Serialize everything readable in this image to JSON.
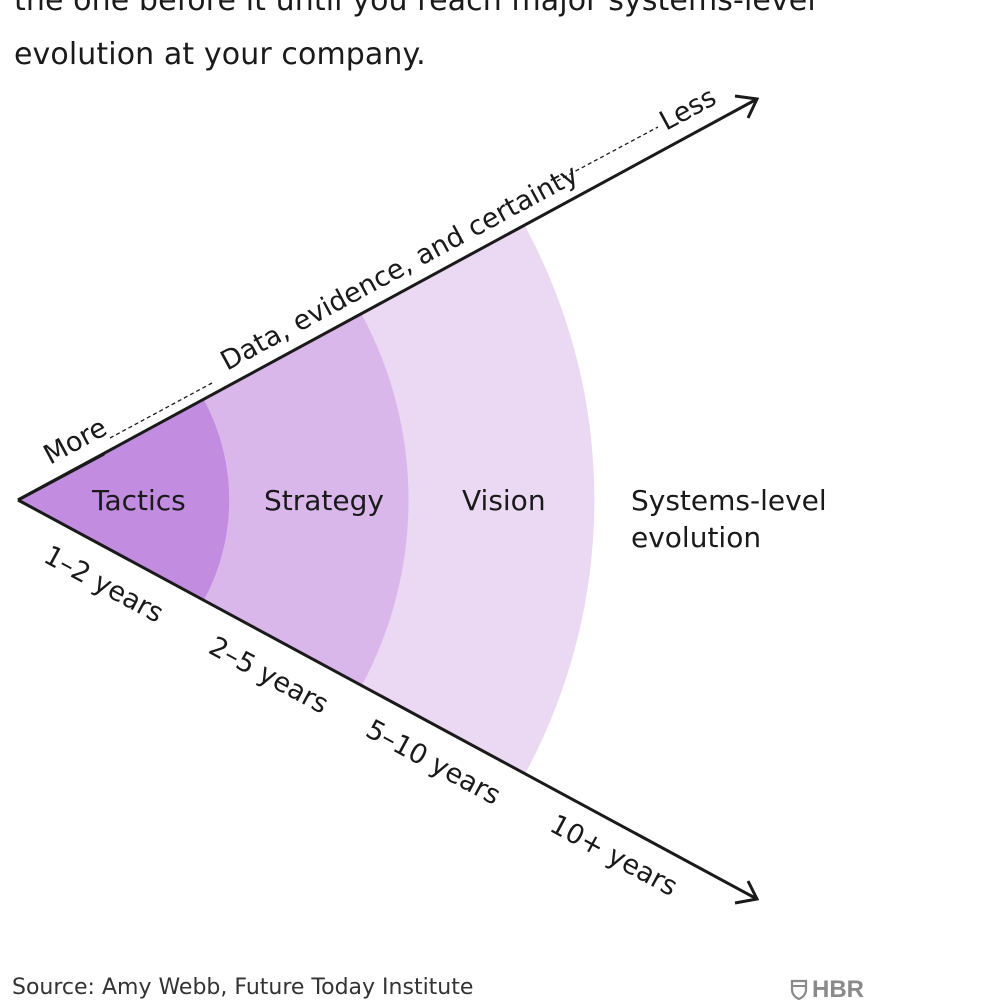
{
  "intro": {
    "line1": "the one before it until you reach major systems-level",
    "line2": "evolution at your company."
  },
  "axis_top": {
    "start_label": "More",
    "middle_label": "Data, evidence, and certainty",
    "end_label": "Less"
  },
  "zones": [
    {
      "label": "Tactics",
      "color": "#c28de0"
    },
    {
      "label": "Strategy",
      "color": "#dab7eb"
    },
    {
      "label": "Vision",
      "color": "#ebd8f3"
    },
    {
      "label_line1": "Systems-level",
      "label_line2": "evolution",
      "color": "#ffffff"
    }
  ],
  "axis_bottom": {
    "ticks": [
      "1–2 years",
      "2–5 years",
      "5–10 years",
      "10+ years"
    ]
  },
  "footer": {
    "source": "Source: Amy Webb, Future Today Institute",
    "brand": "HBR"
  }
}
